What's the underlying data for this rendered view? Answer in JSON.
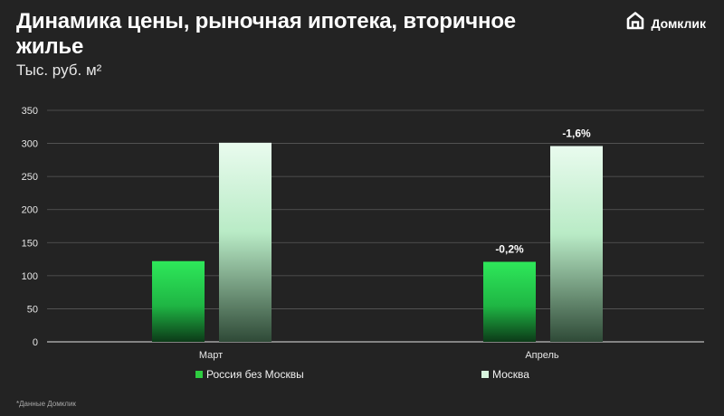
{
  "header": {
    "title": "Динамика цены, рыночная ипотека, вторичное жилье",
    "subtitle": "Тыс. руб. м²",
    "brand": "Домклик"
  },
  "footnote": "*Данные Домклик",
  "colors": {
    "background": "#232323",
    "russia": "#2ecc40",
    "moscow": "#d8f5de",
    "grid": "#5a5a5a"
  },
  "icons": {
    "logo": "house-icon"
  },
  "chart_data": {
    "type": "bar",
    "categories": [
      "Март",
      "Апрель"
    ],
    "series": [
      {
        "name": "Россия без Москвы",
        "values": [
          122,
          121
        ],
        "labels": [
          "",
          "-0,2%"
        ]
      },
      {
        "name": "Москва",
        "values": [
          301,
          296
        ],
        "labels": [
          "",
          "-1,6%"
        ]
      }
    ],
    "ylim": [
      0,
      350
    ],
    "yticks": [
      0,
      50,
      100,
      150,
      200,
      250,
      300,
      350
    ],
    "grid": true,
    "legend": "bottom"
  }
}
